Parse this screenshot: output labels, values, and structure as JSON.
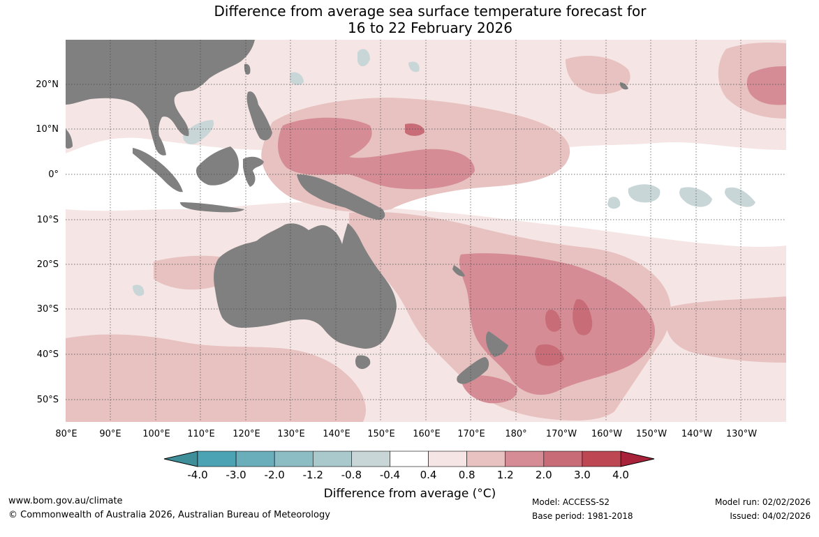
{
  "title": {
    "line1": "Difference from average sea surface temperature forecast for",
    "line2": "16 to 22 February 2026"
  },
  "lat_labels": [
    "20°N",
    "10°N",
    "0°",
    "10°S",
    "20°S",
    "30°S",
    "40°S",
    "50°S"
  ],
  "lon_labels": [
    "80°E",
    "90°E",
    "100°E",
    "110°E",
    "120°E",
    "130°E",
    "140°E",
    "150°E",
    "160°E",
    "170°E",
    "180°",
    "170°W",
    "160°W",
    "150°W",
    "140°W",
    "130°W"
  ],
  "colorbar": {
    "ticks": [
      "-4.0",
      "-3.0",
      "-2.0",
      "-1.2",
      "-0.8",
      "-0.4",
      "0.4",
      "0.8",
      "1.2",
      "2.0",
      "3.0",
      "4.0"
    ],
    "colors": [
      "#4ba3b3",
      "#6aadbb",
      "#8cbcc4",
      "#a9c9cd",
      "#c9d6d8",
      "#ffffff",
      "#f5e6e5",
      "#e7c2c0",
      "#d58c94",
      "#c86c78",
      "#bd4753"
    ],
    "low_extend_color": "#3e8f99",
    "high_extend_color": "#a8223a",
    "label": "Difference from average (°C)"
  },
  "palette": {
    "land": "#808080",
    "ocean": "#ffffff",
    "warm_light": "#f5e6e5",
    "warm_mid": "#e7c2c0",
    "warm_strong": "#d58c94",
    "warm_stronger": "#c86c78",
    "cool_light": "#c9d6d8"
  },
  "footer": {
    "url": "www.bom.gov.au/climate",
    "copyright": "© Commonwealth of Australia 2026, Australian Bureau of Meteorology",
    "model": "Model: ACCESS-S2",
    "base_period": "Base period: 1981-2018",
    "model_run": "Model run: 02/02/2026",
    "issued": "Issued: 04/02/2026"
  }
}
